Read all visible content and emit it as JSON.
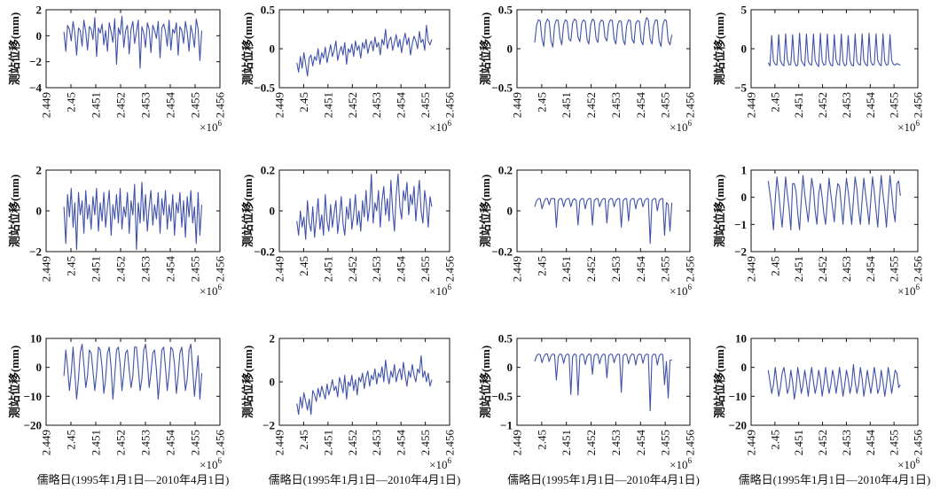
{
  "chart_data": {
    "type": "line",
    "layout": "3x4 grid",
    "line_color": "#2b3f9e",
    "shared": {
      "ylabel": "测站位移(mm)",
      "xlabel": "儒略日(1995年1月1日—2010年4月1日)",
      "x_multiplier_label": "×10",
      "x_multiplier_exp": "6",
      "xlim": [
        2449000,
        2456000
      ],
      "xticks": [
        2449000,
        2450000,
        2451000,
        2452000,
        2453000,
        2454000,
        2455000,
        2456000
      ],
      "xtick_labels": [
        "2.449",
        "2.45",
        "2.451",
        "2.452",
        "2.453",
        "2.454",
        "2.455",
        "2.456"
      ],
      "x_start": 2449719,
      "x_step": 73
    },
    "panels": [
      {
        "row": 1,
        "col": 1,
        "ylim": [
          -4,
          2
        ],
        "yticks": [
          -4,
          -2,
          0,
          2
        ],
        "ytick_labels": [
          "−4",
          "−2",
          "0",
          "2"
        ],
        "show_xlabel": false,
        "values": [
          0.3,
          -1.2,
          0.8,
          0.5,
          -0.4,
          1.1,
          0.2,
          -1.5,
          0.6,
          0.4,
          -0.8,
          1.2,
          0.3,
          -1.1,
          0.7,
          0.5,
          -0.3,
          1.4,
          -1.6,
          0.6,
          0.2,
          0.9,
          -0.7,
          0.4,
          -1.2,
          1.0,
          0.3,
          -0.5,
          1.3,
          -2.2,
          0.6,
          0.1,
          1.5,
          -0.9,
          0.4,
          0.8,
          -1.4,
          0.5,
          1.1,
          -0.6,
          0.3,
          1.2,
          -2.5,
          0.7,
          0.2,
          -0.9,
          1.0,
          0.5,
          -1.3,
          0.8,
          0.4,
          -0.2,
          1.1,
          -1.7,
          0.6,
          0.9,
          0.3,
          -0.8,
          1.2,
          -1.1,
          0.5,
          0.2,
          1.0,
          -1.5,
          0.7,
          0.4,
          -0.6,
          1.1,
          0.3,
          -1.2,
          0.8,
          0.1,
          -0.9,
          1.3,
          0.5,
          -1.9,
          0.4
        ]
      },
      {
        "row": 1,
        "col": 2,
        "ylim": [
          -0.5,
          0.5
        ],
        "yticks": [
          -0.5,
          0,
          0.5
        ],
        "ytick_labels": [
          "−0.5",
          "0",
          "0.5"
        ],
        "show_xlabel": false,
        "values": [
          -0.18,
          -0.3,
          -0.1,
          -0.25,
          -0.05,
          -0.2,
          -0.35,
          -0.12,
          -0.08,
          -0.22,
          -0.1,
          -0.15,
          0.0,
          -0.2,
          -0.05,
          -0.12,
          0.02,
          -0.18,
          -0.06,
          0.05,
          -0.1,
          -0.02,
          0.1,
          -0.15,
          -0.04,
          0.03,
          -0.08,
          0.08,
          -0.2,
          0.0,
          -0.05,
          0.06,
          -0.1,
          0.1,
          -0.02,
          0.04,
          -0.12,
          0.08,
          0.0,
          0.12,
          -0.06,
          0.05,
          0.1,
          -0.03,
          0.15,
          0.02,
          0.08,
          -0.08,
          0.12,
          0.05,
          0.25,
          0.0,
          0.1,
          0.15,
          -0.02,
          0.08,
          0.18,
          0.02,
          0.12,
          -0.05,
          0.1,
          0.2,
          0.05,
          0.14,
          -0.08,
          0.06,
          0.16,
          0.1,
          0.0,
          0.22,
          0.08,
          0.12,
          -0.02,
          0.3,
          0.1,
          0.05,
          0.12
        ]
      },
      {
        "row": 1,
        "col": 3,
        "ylim": [
          -0.5,
          0.5
        ],
        "yticks": [
          -0.5,
          0,
          0.5
        ],
        "ytick_labels": [
          "−0.5",
          "0",
          "0.5"
        ],
        "show_xlabel": false,
        "values": [
          0.08,
          0.3,
          0.37,
          0.36,
          0.12,
          0.03,
          0.32,
          0.38,
          0.35,
          0.1,
          0.02,
          0.3,
          0.37,
          0.36,
          0.14,
          0.05,
          0.31,
          0.37,
          0.35,
          0.12,
          0.1,
          0.33,
          0.38,
          0.36,
          0.15,
          0.09,
          0.32,
          0.37,
          0.35,
          0.12,
          0.06,
          0.31,
          0.38,
          0.36,
          0.13,
          0.08,
          0.33,
          0.37,
          0.35,
          0.14,
          0.1,
          0.32,
          0.37,
          0.36,
          0.12,
          0.06,
          0.31,
          0.36,
          0.35,
          0.11,
          0.05,
          0.3,
          0.37,
          0.36,
          0.12,
          0.07,
          0.32,
          0.36,
          0.35,
          0.1,
          0.05,
          0.31,
          0.4,
          0.37,
          0.12,
          0.06,
          0.3,
          0.37,
          0.36,
          0.1,
          0.03,
          0.3,
          0.37,
          0.36,
          0.1,
          0.05,
          0.18
        ]
      },
      {
        "row": 1,
        "col": 4,
        "ylim": [
          -5,
          5
        ],
        "yticks": [
          -5,
          0,
          5
        ],
        "ytick_labels": [
          "−5",
          "0",
          "5"
        ],
        "show_xlabel": false,
        "values": [
          -1.8,
          -2.2,
          1.7,
          -1.6,
          -2.0,
          -2.1,
          1.8,
          -1.5,
          -2.0,
          -2.2,
          1.9,
          -1.4,
          -2.1,
          -2.0,
          1.8,
          -1.6,
          -2.2,
          -2.1,
          2.0,
          -1.5,
          -1.9,
          -2.2,
          1.9,
          -1.6,
          -2.0,
          -2.1,
          1.9,
          -1.5,
          -2.0,
          -2.3,
          2.0,
          -1.6,
          -2.1,
          -2.0,
          1.9,
          -1.5,
          -2.1,
          -2.2,
          1.8,
          -1.4,
          -2.0,
          -2.1,
          1.9,
          -1.6,
          -2.2,
          -2.0,
          1.7,
          -1.5,
          -2.1,
          -2.2,
          1.9,
          -1.6,
          -2.0,
          -2.1,
          1.9,
          -1.5,
          -2.0,
          -2.2,
          2.0,
          -1.6,
          -2.1,
          -2.0,
          1.9,
          -1.5,
          -2.0,
          -2.2,
          1.9,
          -1.6,
          -2.1,
          -2.0,
          1.8,
          -1.5,
          -2.0,
          -2.1,
          -1.9,
          -2.0,
          -2.1
        ]
      },
      {
        "row": 2,
        "col": 1,
        "ylim": [
          -2,
          2
        ],
        "yticks": [
          -2,
          0,
          2
        ],
        "ytick_labels": [
          "−2",
          "0",
          "2"
        ],
        "show_xlabel": false,
        "values": [
          0.2,
          -1.6,
          0.8,
          -0.3,
          1.1,
          -0.8,
          0.4,
          -1.9,
          0.9,
          -0.2,
          0.5,
          -1.1,
          1.0,
          -0.4,
          0.3,
          -0.9,
          0.7,
          -0.2,
          1.1,
          -1.0,
          0.4,
          -0.5,
          0.9,
          -0.8,
          0.2,
          1.0,
          -1.2,
          0.3,
          -0.4,
          0.8,
          -0.6,
          1.1,
          -0.9,
          0.2,
          -0.3,
          0.9,
          -1.1,
          0.5,
          -0.2,
          1.3,
          -1.9,
          0.4,
          -0.6,
          1.4,
          -0.5,
          0.8,
          -1.0,
          0.2,
          1.0,
          -0.7,
          0.3,
          -0.4,
          0.9,
          -1.1,
          0.6,
          -0.2,
          1.0,
          -0.9,
          0.3,
          -0.5,
          0.8,
          -1.2,
          0.4,
          -0.1,
          0.9,
          -0.8,
          0.5,
          -1.3,
          0.7,
          -0.3,
          1.0,
          -0.6,
          0.2,
          -1.6,
          0.9,
          -1.2,
          0.3
        ]
      },
      {
        "row": 2,
        "col": 2,
        "ylim": [
          -0.2,
          0.2
        ],
        "yticks": [
          -0.2,
          0,
          0.2
        ],
        "ytick_labels": [
          "−0.2",
          "0",
          "0.2"
        ],
        "show_xlabel": false,
        "values": [
          -0.05,
          -0.12,
          0.0,
          -0.08,
          -0.03,
          -0.14,
          0.05,
          -0.06,
          -0.1,
          0.02,
          -0.13,
          -0.04,
          0.06,
          -0.09,
          -0.02,
          -0.12,
          0.08,
          -0.05,
          -0.1,
          0.03,
          -0.08,
          -0.01,
          0.05,
          -0.11,
          -0.03,
          0.07,
          -0.06,
          -0.12,
          0.02,
          -0.04,
          0.06,
          -0.09,
          -0.02,
          0.08,
          -0.07,
          0.0,
          -0.1,
          0.05,
          -0.03,
          0.1,
          -0.05,
          0.02,
          0.18,
          -0.06,
          0.04,
          0.0,
          0.1,
          -0.08,
          0.05,
          0.12,
          -0.02,
          0.06,
          -0.05,
          0.15,
          0.0,
          -0.1,
          0.08,
          0.18,
          0.02,
          -0.04,
          0.1,
          0.05,
          0.14,
          -0.02,
          0.08,
          0.03,
          0.12,
          -0.05,
          0.06,
          0.15,
          0.0,
          -0.06,
          0.1,
          0.03,
          -0.08,
          0.07,
          0.02
        ]
      },
      {
        "row": 2,
        "col": 3,
        "ylim": [
          -0.2,
          0.2
        ],
        "yticks": [
          -0.2,
          0,
          0.2
        ],
        "ytick_labels": [
          "−0.2",
          "0",
          "0.2"
        ],
        "show_xlabel": false,
        "values": [
          0.02,
          0.05,
          0.06,
          0.06,
          0.01,
          0.04,
          0.06,
          0.06,
          0.03,
          0.06,
          0.06,
          0.06,
          -0.08,
          0.05,
          0.06,
          0.06,
          0.02,
          0.05,
          0.06,
          0.06,
          0.02,
          0.05,
          0.06,
          0.05,
          -0.07,
          0.05,
          0.06,
          0.06,
          0.01,
          0.05,
          0.06,
          0.06,
          -0.07,
          0.05,
          0.06,
          0.06,
          0.02,
          0.05,
          0.06,
          0.06,
          -0.06,
          0.05,
          0.06,
          0.06,
          0.02,
          0.05,
          0.06,
          0.06,
          -0.08,
          0.05,
          0.06,
          0.06,
          -0.05,
          0.05,
          0.06,
          0.06,
          0.01,
          0.05,
          0.06,
          0.06,
          0.02,
          0.05,
          0.06,
          0.06,
          -0.16,
          0.05,
          0.06,
          0.06,
          0.0,
          0.05,
          0.06,
          0.06,
          -0.12,
          0.04,
          0.03,
          -0.1,
          0.04
        ]
      },
      {
        "row": 2,
        "col": 4,
        "ylim": [
          -2,
          1
        ],
        "yticks": [
          -2,
          -1,
          0,
          1
        ],
        "ytick_labels": [
          "−2",
          "−1",
          "0",
          "1"
        ],
        "show_xlabel": false,
        "values": [
          0.6,
          0.1,
          -0.4,
          -1.2,
          -0.1,
          0.75,
          0.2,
          -0.5,
          -1.1,
          -0.2,
          0.75,
          0.1,
          -0.4,
          -1.2,
          0.5,
          0.5,
          0.2,
          -0.6,
          -1.2,
          -0.1,
          0.8,
          0.1,
          -0.4,
          -0.9,
          -0.1,
          0.7,
          0.3,
          -0.5,
          -1.0,
          0.1,
          0.5,
          0.0,
          -0.6,
          -1.0,
          -0.1,
          0.7,
          0.1,
          -0.4,
          -0.9,
          0.0,
          0.5,
          0.4,
          -0.3,
          -1.0,
          -0.1,
          0.7,
          0.2,
          -0.4,
          -1.0,
          -0.1,
          0.75,
          0.3,
          -0.5,
          -1.0,
          -0.1,
          0.7,
          0.1,
          -0.4,
          -1.0,
          -0.1,
          0.75,
          0.2,
          -0.5,
          -1.1,
          0.0,
          0.8,
          0.1,
          -0.4,
          -1.1,
          -0.1,
          0.8,
          0.2,
          -0.5,
          -0.9,
          0.5,
          0.6,
          0.05
        ]
      },
      {
        "row": 3,
        "col": 1,
        "ylim": [
          -20,
          10
        ],
        "yticks": [
          -20,
          -10,
          0,
          10
        ],
        "ytick_labels": [
          "−20",
          "−10",
          "0",
          "10"
        ],
        "show_xlabel": true,
        "values": [
          -3,
          6,
          0,
          -8,
          -2,
          7,
          -2,
          -11,
          -4,
          5,
          8,
          1,
          -7,
          -3,
          6,
          5,
          -1,
          -8,
          -2,
          7,
          6,
          0,
          -9,
          -4,
          5,
          7,
          0,
          -11,
          -3,
          6,
          7,
          1,
          -8,
          -2,
          5,
          6,
          -1,
          -7,
          -3,
          7,
          7,
          0,
          -8,
          -4,
          6,
          8,
          2,
          -7,
          -2,
          5,
          6,
          -1,
          -11,
          -3,
          6,
          7,
          0,
          -8,
          -2,
          7,
          6,
          1,
          -9,
          -3,
          5,
          7,
          0,
          -8,
          -4,
          6,
          8,
          -1,
          -10,
          -3,
          4,
          -11,
          -2
        ]
      },
      {
        "row": 3,
        "col": 2,
        "ylim": [
          -2,
          2
        ],
        "yticks": [
          -2,
          0,
          2
        ],
        "ytick_labels": [
          "−2",
          "0",
          "2"
        ],
        "show_xlabel": true,
        "values": [
          -1.0,
          -1.5,
          -0.7,
          -1.2,
          -0.5,
          -0.9,
          -1.3,
          -0.8,
          -1.5,
          -0.4,
          -0.6,
          -0.9,
          -0.3,
          -0.7,
          -0.2,
          -0.5,
          -0.8,
          -0.1,
          -0.6,
          -0.3,
          0.1,
          -0.4,
          -0.2,
          -0.7,
          0.2,
          -0.1,
          -0.5,
          0.3,
          -0.8,
          0.0,
          -0.2,
          0.3,
          -0.4,
          0.1,
          -0.6,
          0.2,
          0.0,
          0.4,
          -0.3,
          0.2,
          0.5,
          -0.2,
          0.3,
          0.1,
          0.6,
          -0.1,
          0.4,
          0.2,
          0.7,
          0.0,
          1.0,
          0.3,
          -0.1,
          0.5,
          0.2,
          0.8,
          0.0,
          0.4,
          0.6,
          0.1,
          0.9,
          0.3,
          -0.2,
          0.5,
          0.2,
          0.8,
          0.3,
          0.0,
          0.6,
          0.4,
          1.2,
          0.2,
          0.5,
          0.0,
          0.4,
          -0.2,
          0.1
        ]
      },
      {
        "row": 3,
        "col": 3,
        "ylim": [
          -1,
          0.5
        ],
        "yticks": [
          -1,
          -0.5,
          0,
          0.5
        ],
        "ytick_labels": [
          "−1",
          "−0.5",
          "0",
          "0.5"
        ],
        "show_xlabel": true,
        "values": [
          0.1,
          0.2,
          0.23,
          0.22,
          0.08,
          0.18,
          0.23,
          0.23,
          0.1,
          0.2,
          0.23,
          0.22,
          -0.22,
          0.19,
          0.23,
          0.22,
          0.07,
          0.2,
          0.23,
          0.22,
          -0.47,
          0.19,
          0.23,
          0.22,
          -0.48,
          0.2,
          0.23,
          0.22,
          0.05,
          0.19,
          0.23,
          0.22,
          -0.12,
          0.2,
          0.23,
          0.22,
          0.06,
          0.19,
          0.23,
          0.22,
          -0.18,
          0.2,
          0.23,
          0.22,
          0.08,
          0.19,
          0.23,
          0.22,
          -0.43,
          0.2,
          0.23,
          0.22,
          0.06,
          0.19,
          0.23,
          0.22,
          0.04,
          0.2,
          0.23,
          0.22,
          0.07,
          0.2,
          0.23,
          0.22,
          -0.75,
          0.19,
          0.23,
          0.22,
          0.04,
          0.2,
          0.23,
          0.22,
          -0.3,
          0.1,
          -0.53,
          0.12,
          0.13
        ]
      },
      {
        "row": 3,
        "col": 4,
        "ylim": [
          -20,
          10
        ],
        "yticks": [
          -20,
          -10,
          0,
          10
        ],
        "ytick_labels": [
          "−20",
          "−10",
          "0",
          "10"
        ],
        "show_xlabel": true,
        "values": [
          -1,
          -5,
          -9,
          -6,
          0,
          -5,
          -10,
          -7,
          -2,
          0,
          -4,
          -9,
          -7,
          -1,
          -5,
          -11,
          -7,
          0,
          -4,
          -9,
          -6,
          -1,
          -5,
          -10,
          -4,
          0,
          -5,
          -9,
          -6,
          -1,
          -4,
          -10,
          -6,
          0,
          -5,
          -9,
          -6,
          -1,
          -4,
          -9,
          -5,
          0,
          -5,
          -10,
          -6,
          -1,
          -4,
          -9,
          -6,
          1,
          -5,
          -9,
          -6,
          0,
          -4,
          -10,
          -6,
          -1,
          -5,
          -9,
          -5,
          0,
          -4,
          -9,
          -7,
          -1,
          -5,
          -10,
          -6,
          0,
          -4,
          -9,
          -5,
          -1,
          -2,
          -7,
          -6
        ]
      }
    ]
  }
}
